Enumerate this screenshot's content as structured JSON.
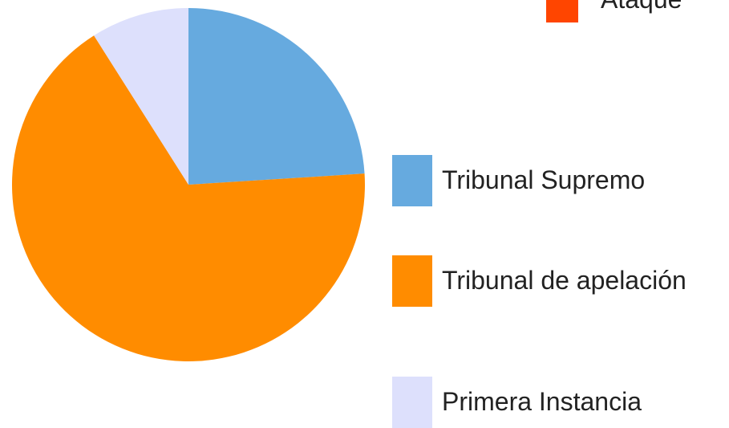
{
  "chart_data": {
    "type": "pie",
    "categories": [
      "Tribunal Supremo",
      "Tribunal de apelación",
      "Primera Instancia"
    ],
    "values": [
      24,
      67,
      9
    ],
    "colors": [
      "#66aadf",
      "#ff8c00",
      "#dde0fc"
    ]
  },
  "fragment_legend": {
    "label": "Ataque",
    "color": "#ff4500"
  }
}
